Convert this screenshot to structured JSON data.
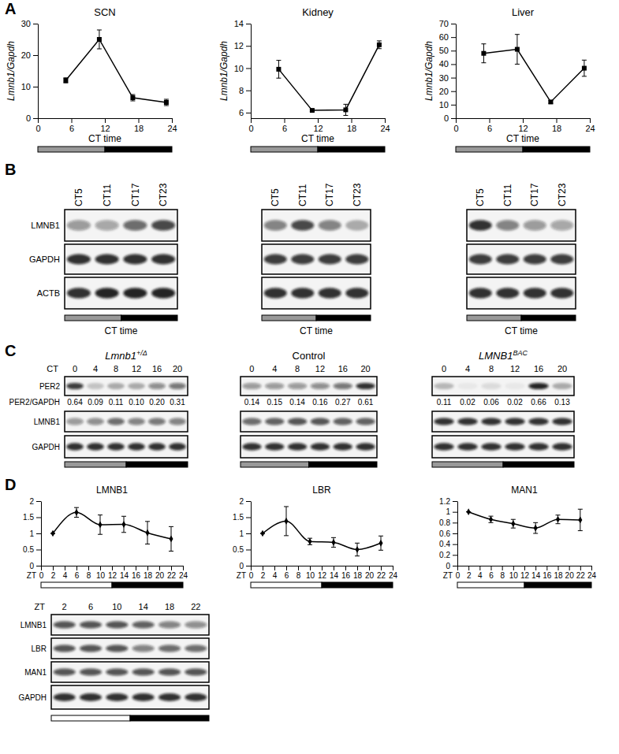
{
  "chart_data": [
    {
      "type": "line",
      "title": "SCN",
      "x_label": "CT time",
      "y_label": "Lmnb1/Gapdh",
      "x": [
        5,
        11,
        17,
        23
      ],
      "values": [
        12,
        25,
        6.5,
        5
      ],
      "errors": [
        0.8,
        3,
        1,
        1
      ],
      "xlim": [
        0,
        24
      ],
      "xticks": [
        0,
        6,
        12,
        18,
        24
      ],
      "ylim": [
        0,
        30
      ],
      "yticks": [
        0,
        10,
        20,
        30
      ],
      "color": "#000000",
      "marker": "square",
      "phases": [
        {
          "from": 0,
          "to": 12,
          "color": "#999999"
        },
        {
          "from": 12,
          "to": 24,
          "color": "#000000"
        }
      ]
    },
    {
      "type": "line",
      "title": "Kidney",
      "x_label": "CT time",
      "y_label": "Lmnb1/Gapdh",
      "x": [
        5,
        11,
        17,
        23
      ],
      "values": [
        9.9,
        6.2,
        6.25,
        12.1
      ],
      "errors": [
        0.8,
        0.1,
        0.5,
        0.35
      ],
      "xlim": [
        0,
        24
      ],
      "xticks": [
        0,
        6,
        12,
        18,
        24
      ],
      "ylim": [
        5.5,
        14
      ],
      "yticks": [
        6,
        8,
        10,
        12,
        14
      ],
      "color": "#000000",
      "marker": "square",
      "phases": [
        {
          "from": 0,
          "to": 12,
          "color": "#999999"
        },
        {
          "from": 12,
          "to": 24,
          "color": "#000000"
        }
      ]
    },
    {
      "type": "line",
      "title": "Liver",
      "x_label": "CT time",
      "y_label": "Lmnb1/Gapdh",
      "x": [
        5,
        11,
        17,
        23
      ],
      "values": [
        48,
        51,
        12,
        37
      ],
      "errors": [
        7,
        11,
        1,
        6
      ],
      "xlim": [
        0,
        24
      ],
      "xticks": [
        0,
        6,
        12,
        18,
        24
      ],
      "ylim": [
        0,
        70
      ],
      "yticks": [
        0,
        10,
        20,
        30,
        40,
        50,
        60,
        70
      ],
      "color": "#000000",
      "marker": "square",
      "phases": [
        {
          "from": 0,
          "to": 12,
          "color": "#999999"
        },
        {
          "from": 12,
          "to": 24,
          "color": "#000000"
        }
      ]
    },
    {
      "type": "line",
      "title": "LMNB1",
      "x_label": "ZT",
      "x": [
        2,
        6,
        10,
        14,
        18,
        22
      ],
      "values": [
        1,
        1.65,
        1.27,
        1.28,
        1.02,
        0.83
      ],
      "errors": [
        0,
        0.15,
        0.3,
        0.25,
        0.35,
        0.38
      ],
      "xlim": [
        0,
        24
      ],
      "xticks": [
        0,
        2,
        4,
        6,
        8,
        10,
        12,
        14,
        16,
        18,
        20,
        22,
        24
      ],
      "ylim": [
        0,
        2
      ],
      "yticks": [
        0,
        0.5,
        1,
        1.5,
        2
      ],
      "color": "#000000",
      "marker": "diamond",
      "line_style": "smooth",
      "phases": [
        {
          "from": 0,
          "to": 12,
          "color": "#ffffff"
        },
        {
          "from": 12,
          "to": 24,
          "color": "#000000"
        }
      ]
    },
    {
      "type": "line",
      "title": "LBR",
      "x_label": "ZT",
      "x": [
        2,
        6,
        10,
        14,
        18,
        22
      ],
      "values": [
        1,
        1.38,
        0.75,
        0.72,
        0.5,
        0.7
      ],
      "errors": [
        0,
        0.45,
        0.1,
        0.15,
        0.2,
        0.22
      ],
      "xlim": [
        0,
        24
      ],
      "xticks": [
        0,
        2,
        4,
        6,
        8,
        10,
        12,
        14,
        16,
        18,
        20,
        22,
        24
      ],
      "ylim": [
        0,
        2
      ],
      "yticks": [
        0,
        0.5,
        1,
        1.5,
        2
      ],
      "color": "#000000",
      "marker": "diamond",
      "line_style": "smooth",
      "phases": [
        {
          "from": 0,
          "to": 12,
          "color": "#ffffff"
        },
        {
          "from": 12,
          "to": 24,
          "color": "#000000"
        }
      ]
    },
    {
      "type": "line",
      "title": "MAN1",
      "x_label": "ZT",
      "x": [
        2,
        6,
        10,
        14,
        18,
        22
      ],
      "values": [
        1,
        0.86,
        0.78,
        0.7,
        0.86,
        0.85
      ],
      "errors": [
        0,
        0.06,
        0.08,
        0.1,
        0.08,
        0.2
      ],
      "xlim": [
        0,
        24
      ],
      "xticks": [
        0,
        2,
        4,
        6,
        8,
        10,
        12,
        14,
        16,
        18,
        20,
        22,
        24
      ],
      "ylim": [
        0,
        1.2
      ],
      "yticks": [
        0,
        0.2,
        0.4,
        0.6,
        0.8,
        1,
        1.2
      ],
      "color": "#000000",
      "marker": "diamond",
      "line_style": "smooth",
      "phases": [
        {
          "from": 0,
          "to": 12,
          "color": "#ffffff"
        },
        {
          "from": 12,
          "to": 24,
          "color": "#000000"
        }
      ]
    }
  ],
  "panel_labels": [
    "A",
    "B",
    "C",
    "D"
  ],
  "blot_panels": [
    [
      {
        "lanes": [
          "CT5",
          "CT11",
          "CT17",
          "CT23"
        ],
        "rows": [
          {
            "label": "LMNB1",
            "band_intensity": [
              0.4,
              0.35,
              0.6,
              0.75
            ]
          },
          {
            "label": "GAPDH",
            "band_intensity": [
              0.85,
              0.85,
              0.85,
              0.85
            ]
          },
          {
            "label": "ACTB",
            "band_intensity": [
              0.85,
              0.9,
              0.9,
              0.9
            ]
          }
        ],
        "x_label": "CT time",
        "light_bar": [
          "#999999",
          "#000000"
        ]
      },
      {
        "lanes": [
          "CT5",
          "CT11",
          "CT17",
          "CT23"
        ],
        "rows": [
          {
            "band_intensity": [
              0.5,
              0.75,
              0.5,
              0.3
            ]
          },
          {
            "band_intensity": [
              0.8,
              0.8,
              0.8,
              0.8
            ]
          },
          {
            "band_intensity": [
              0.85,
              0.85,
              0.85,
              0.85
            ]
          }
        ],
        "x_label": "CT time",
        "light_bar": [
          "#999999",
          "#000000"
        ]
      },
      {
        "lanes": [
          "CT5",
          "CT11",
          "CT17",
          "CT23"
        ],
        "rows": [
          {
            "band_intensity": [
              0.85,
              0.5,
              0.4,
              0.35
            ]
          },
          {
            "band_intensity": [
              0.8,
              0.8,
              0.8,
              0.8
            ]
          },
          {
            "band_intensity": [
              0.85,
              0.85,
              0.85,
              0.85
            ]
          }
        ],
        "x_label": "CT time",
        "light_bar": [
          "#999999",
          "#000000"
        ]
      }
    ],
    [
      {
        "title": "Lmnb1",
        "title_sup": "+/Δ",
        "lane_header": "CT",
        "lanes": [
          "0",
          "4",
          "8",
          "12",
          "16",
          "20"
        ],
        "rows": [
          {
            "label": "PER2",
            "band_intensity": [
              0.8,
              0.2,
              0.3,
              0.3,
              0.45,
              0.55
            ]
          },
          {
            "label": "PER2/GAPDH",
            "values": [
              "0.64",
              "0.09",
              "0.11",
              "0.10",
              "0.20",
              "0.31"
            ]
          },
          {
            "label": "LMNB1",
            "band_intensity": [
              0.4,
              0.45,
              0.6,
              0.5,
              0.55,
              0.5
            ]
          },
          {
            "label": "GAPDH",
            "band_intensity": [
              0.85,
              0.85,
              0.85,
              0.85,
              0.85,
              0.85
            ]
          }
        ],
        "light_bar": [
          "#999999",
          "#000000"
        ]
      },
      {
        "title": "Control",
        "lanes": [
          "0",
          "4",
          "8",
          "12",
          "16",
          "20"
        ],
        "rows": [
          {
            "band_intensity": [
              0.4,
              0.4,
              0.4,
              0.45,
              0.55,
              0.85
            ]
          },
          {
            "values": [
              "0.14",
              "0.15",
              "0.14",
              "0.16",
              "0.27",
              "0.61"
            ]
          },
          {
            "band_intensity": [
              0.6,
              0.65,
              0.7,
              0.7,
              0.65,
              0.65
            ]
          },
          {
            "band_intensity": [
              0.85,
              0.85,
              0.85,
              0.85,
              0.85,
              0.85
            ]
          }
        ],
        "light_bar": [
          "#999999",
          "#000000"
        ]
      },
      {
        "title": "LMNB1",
        "title_sup": "BAC",
        "lanes": [
          "0",
          "4",
          "8",
          "12",
          "16",
          "20"
        ],
        "rows": [
          {
            "band_intensity": [
              0.25,
              0.05,
              0.1,
              0.05,
              0.9,
              0.3
            ]
          },
          {
            "values": [
              "0.11",
              "0.02",
              "0.06",
              "0.02",
              "0.66",
              "0.13"
            ]
          },
          {
            "band_intensity": [
              0.85,
              0.85,
              0.85,
              0.85,
              0.85,
              0.85
            ]
          },
          {
            "band_intensity": [
              0.85,
              0.85,
              0.85,
              0.85,
              0.85,
              0.85
            ]
          }
        ],
        "light_bar": [
          "#999999",
          "#000000"
        ]
      }
    ],
    [
      {
        "lane_header": "ZT",
        "lanes": [
          "2",
          "6",
          "10",
          "14",
          "18",
          "22"
        ],
        "rows": [
          {
            "label": "LMNB1",
            "band_intensity": [
              0.7,
              0.7,
              0.7,
              0.65,
              0.5,
              0.45
            ]
          },
          {
            "label": "LBR",
            "band_intensity": [
              0.7,
              0.7,
              0.7,
              0.5,
              0.6,
              0.6
            ]
          },
          {
            "label": "MAN1",
            "band_intensity": [
              0.7,
              0.7,
              0.7,
              0.7,
              0.7,
              0.7
            ]
          },
          {
            "label": "GAPDH",
            "band_intensity": [
              0.85,
              0.85,
              0.85,
              0.85,
              0.85,
              0.85
            ]
          }
        ],
        "light_bar": [
          "#ffffff",
          "#000000"
        ]
      }
    ]
  ]
}
